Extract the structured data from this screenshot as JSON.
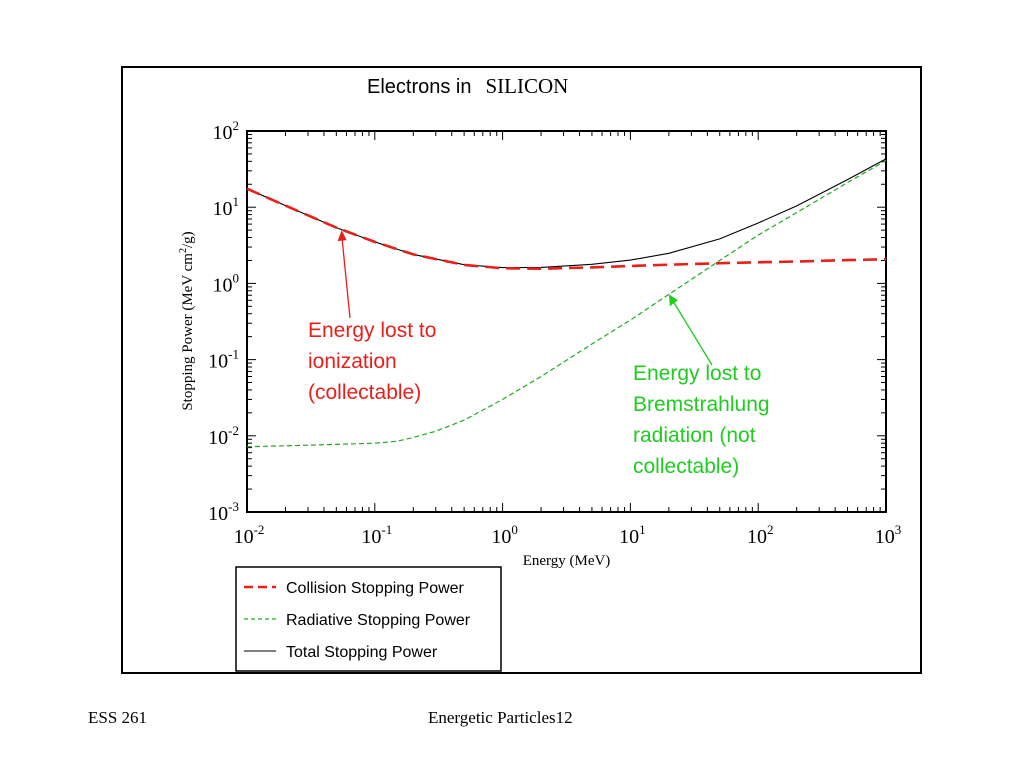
{
  "colors": {
    "collision": "#e8201a",
    "radiative": "#1faa1f",
    "total": "#000000",
    "annot_red": "#e8201a",
    "annot_green": "#1fcc1f"
  },
  "footer": {
    "left": "ESS 261",
    "center": "Energetic Particles12"
  },
  "chart_data": {
    "type": "line",
    "title_prefix": "Electrons in",
    "title_material": "SILICON",
    "xlabel": "Energy (MeV)",
    "ylabel_parts": [
      "Stopping Power (MeV cm",
      "2",
      "/g)"
    ],
    "x_scale": "log",
    "y_scale": "log",
    "xlim": [
      0.01,
      1000
    ],
    "ylim": [
      0.001,
      100
    ],
    "x_ticks": [
      {
        "base": "10",
        "exp": "-2",
        "value": 0.01
      },
      {
        "base": "10",
        "exp": "-1",
        "value": 0.1
      },
      {
        "base": "10",
        "exp": "0",
        "value": 1
      },
      {
        "base": "10",
        "exp": "1",
        "value": 10
      },
      {
        "base": "10",
        "exp": "2",
        "value": 100
      },
      {
        "base": "10",
        "exp": "3",
        "value": 1000
      }
    ],
    "y_ticks": [
      {
        "base": "10",
        "exp": "-3",
        "value": 0.001
      },
      {
        "base": "10",
        "exp": "-2",
        "value": 0.01
      },
      {
        "base": "10",
        "exp": "-1",
        "value": 0.1
      },
      {
        "base": "10",
        "exp": "0",
        "value": 1
      },
      {
        "base": "10",
        "exp": "1",
        "value": 10
      },
      {
        "base": "10",
        "exp": "2",
        "value": 100
      }
    ],
    "grid": false,
    "legend_position": "bottom-left, below plot",
    "series": [
      {
        "name": "Collision Stopping Power",
        "style": "dashed",
        "color": "#e8201a",
        "x": [
          0.01,
          0.02,
          0.05,
          0.1,
          0.2,
          0.5,
          1,
          2,
          5,
          10,
          20,
          50,
          100,
          200,
          500,
          1000
        ],
        "y": [
          17.5,
          10.5,
          5.4,
          3.5,
          2.4,
          1.75,
          1.58,
          1.56,
          1.62,
          1.69,
          1.76,
          1.84,
          1.89,
          1.94,
          2.02,
          2.08
        ]
      },
      {
        "name": "Radiative Stopping Power",
        "style": "dotted",
        "color": "#1faa1f",
        "x": [
          0.01,
          0.02,
          0.05,
          0.1,
          0.15,
          0.2,
          0.3,
          0.5,
          1,
          2,
          5,
          10,
          20,
          50,
          100,
          200,
          500,
          1000
        ],
        "y": [
          0.0072,
          0.0074,
          0.0077,
          0.008,
          0.0085,
          0.0095,
          0.0115,
          0.016,
          0.03,
          0.06,
          0.16,
          0.33,
          0.72,
          2.0,
          4.3,
          8.5,
          21,
          41
        ]
      },
      {
        "name": "Total Stopping Power",
        "style": "solid",
        "color": "#000000",
        "x": [
          0.01,
          0.02,
          0.05,
          0.1,
          0.2,
          0.5,
          1,
          2,
          5,
          10,
          20,
          50,
          100,
          200,
          500,
          1000
        ],
        "y": [
          17.5,
          10.5,
          5.4,
          3.5,
          2.4,
          1.76,
          1.61,
          1.62,
          1.78,
          2.02,
          2.48,
          3.84,
          6.2,
          10.4,
          23,
          43
        ]
      }
    ],
    "annotations": [
      {
        "lines": [
          "Energy lost to",
          "ionization",
          "(collectable)"
        ],
        "color": "#e8201a",
        "arrow_to": {
          "x": 0.055,
          "y": 5.0
        }
      },
      {
        "lines": [
          "Energy lost to",
          "Bremstrahlung",
          "radiation (not",
          "collectable)"
        ],
        "color": "#1fcc1f",
        "arrow_to": {
          "x": 20,
          "y": 0.72
        }
      }
    ]
  }
}
